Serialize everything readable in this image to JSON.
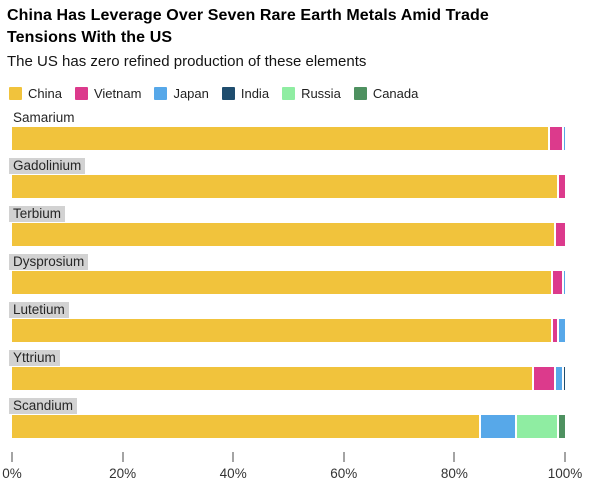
{
  "header": {
    "title_line1": "China Has Leverage Over Seven Rare Earth Metals Amid Trade",
    "title_line2": "Tensions With the US",
    "subtitle": "The US has zero refined production of these elements"
  },
  "legend": [
    {
      "label": "China",
      "color": "#F1C33C"
    },
    {
      "label": "Vietnam",
      "color": "#DC3A8C"
    },
    {
      "label": "Japan",
      "color": "#57A8E9"
    },
    {
      "label": "India",
      "color": "#1F4D6E"
    },
    {
      "label": "Russia",
      "color": "#8FEDA2"
    },
    {
      "label": "Canada",
      "color": "#4E9160"
    }
  ],
  "chart_data": {
    "type": "bar",
    "orientation": "horizontal",
    "stacked": true,
    "unit": "percent",
    "title": "China Has Leverage Over Seven Rare Earth Metals Amid Trade Tensions With the US",
    "subtitle": "The US has zero refined production of these elements",
    "categories": [
      "Samarium",
      "Gadolinium",
      "Terbium",
      "Dysprosium",
      "Lutetium",
      "Yttrium",
      "Scandium"
    ],
    "category_label_highlighted": [
      false,
      true,
      true,
      true,
      true,
      true,
      true
    ],
    "series": [
      {
        "name": "China",
        "color": "#F1C33C",
        "values": [
          97,
          98.5,
          98,
          97.5,
          97.5,
          94,
          84.5
        ]
      },
      {
        "name": "Vietnam",
        "color": "#DC3A8C",
        "values": [
          2.5,
          1.5,
          2,
          2,
          1,
          4,
          0
        ]
      },
      {
        "name": "Japan",
        "color": "#57A8E9",
        "values": [
          0.5,
          0,
          0,
          0.5,
          1.5,
          1.5,
          6.5
        ]
      },
      {
        "name": "India",
        "color": "#1F4D6E",
        "values": [
          0,
          0,
          0,
          0,
          0,
          0.5,
          0
        ]
      },
      {
        "name": "Russia",
        "color": "#8FEDA2",
        "values": [
          0,
          0,
          0,
          0,
          0,
          0,
          7.5
        ]
      },
      {
        "name": "Canada",
        "color": "#4E9160",
        "values": [
          0,
          0,
          0,
          0,
          0,
          0,
          1.5
        ]
      }
    ],
    "x_ticks": [
      "0%",
      "20%",
      "40%",
      "60%",
      "80%",
      "100%"
    ],
    "x_tick_values": [
      0,
      20,
      40,
      60,
      80,
      100
    ],
    "xlim": [
      0,
      100
    ],
    "grid": false,
    "legend_position": "top"
  },
  "style": {
    "label_highlight_bg": "#D2D2D2",
    "background": "#FFFFFF"
  }
}
